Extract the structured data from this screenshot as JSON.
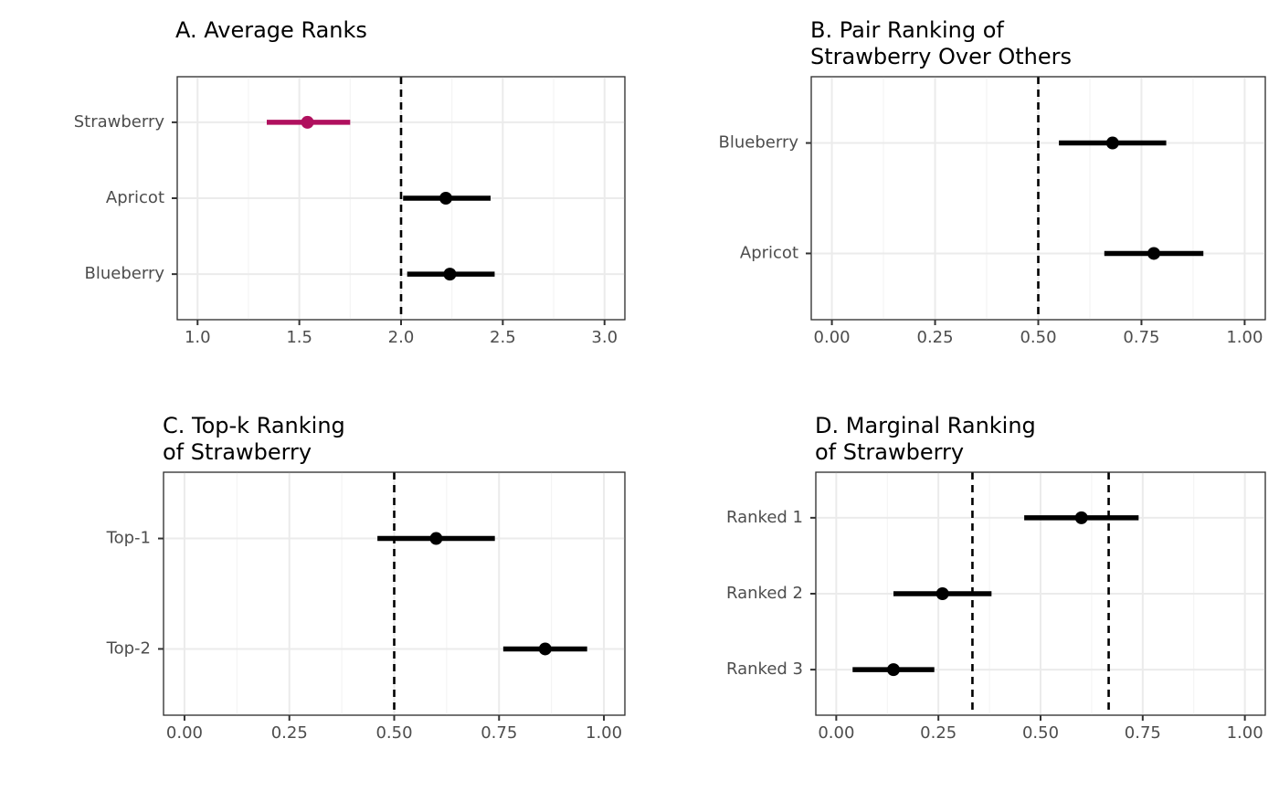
{
  "chart_data": [
    {
      "type": "pointrange",
      "title": [
        "A. Average Ranks"
      ],
      "xlim": [
        0.9,
        3.1
      ],
      "xticks": [
        1.0,
        1.5,
        2.0,
        2.5,
        3.0
      ],
      "xtick_labels": [
        "1.0",
        "1.5",
        "2.0",
        "2.5",
        "3.0"
      ],
      "minor_step": 0.25,
      "reference_lines": [
        2.0
      ],
      "grid": true,
      "categories": [
        "Strawberry",
        "Apricot",
        "Blueberry"
      ],
      "points": [
        {
          "label": "Strawberry",
          "estimate": 1.54,
          "lower": 1.34,
          "upper": 1.75,
          "color": "#b0105e"
        },
        {
          "label": "Apricot",
          "estimate": 2.22,
          "lower": 2.01,
          "upper": 2.44,
          "color": "#000000"
        },
        {
          "label": "Blueberry",
          "estimate": 2.24,
          "lower": 2.03,
          "upper": 2.46,
          "color": "#000000"
        }
      ]
    },
    {
      "type": "pointrange",
      "title": [
        "B. Pair Ranking of",
        "Strawberry Over Others"
      ],
      "xlim": [
        -0.05,
        1.05
      ],
      "xticks": [
        0.0,
        0.25,
        0.5,
        0.75,
        1.0
      ],
      "xtick_labels": [
        "0.00",
        "0.25",
        "0.50",
        "0.75",
        "1.00"
      ],
      "minor_step": 0.125,
      "reference_lines": [
        0.5
      ],
      "grid": true,
      "categories": [
        "Blueberry",
        "Apricot"
      ],
      "points": [
        {
          "label": "Blueberry",
          "estimate": 0.68,
          "lower": 0.55,
          "upper": 0.81,
          "color": "#000000"
        },
        {
          "label": "Apricot",
          "estimate": 0.78,
          "lower": 0.66,
          "upper": 0.9,
          "color": "#000000"
        }
      ]
    },
    {
      "type": "pointrange",
      "title": [
        "C. Top-k Ranking",
        "of Strawberry"
      ],
      "xlim": [
        -0.05,
        1.05
      ],
      "xticks": [
        0.0,
        0.25,
        0.5,
        0.75,
        1.0
      ],
      "xtick_labels": [
        "0.00",
        "0.25",
        "0.50",
        "0.75",
        "1.00"
      ],
      "minor_step": 0.125,
      "reference_lines": [
        0.5
      ],
      "grid": true,
      "categories": [
        "Top-1",
        "Top-2"
      ],
      "points": [
        {
          "label": "Top-1",
          "estimate": 0.6,
          "lower": 0.46,
          "upper": 0.74,
          "color": "#000000"
        },
        {
          "label": "Top-2",
          "estimate": 0.86,
          "lower": 0.76,
          "upper": 0.96,
          "color": "#000000"
        }
      ]
    },
    {
      "type": "pointrange",
      "title": [
        "D. Marginal Ranking",
        "of Strawberry"
      ],
      "xlim": [
        -0.05,
        1.05
      ],
      "xticks": [
        0.0,
        0.25,
        0.5,
        0.75,
        1.0
      ],
      "xtick_labels": [
        "0.00",
        "0.25",
        "0.50",
        "0.75",
        "1.00"
      ],
      "minor_step": 0.125,
      "reference_lines": [
        0.3333,
        0.6667
      ],
      "grid": true,
      "categories": [
        "Ranked 1",
        "Ranked 2",
        "Ranked 3"
      ],
      "points": [
        {
          "label": "Ranked 1",
          "estimate": 0.6,
          "lower": 0.46,
          "upper": 0.74,
          "color": "#000000"
        },
        {
          "label": "Ranked 2",
          "estimate": 0.26,
          "lower": 0.14,
          "upper": 0.38,
          "color": "#000000"
        },
        {
          "label": "Ranked 3",
          "estimate": 0.14,
          "lower": 0.04,
          "upper": 0.24,
          "color": "#000000"
        }
      ]
    }
  ]
}
